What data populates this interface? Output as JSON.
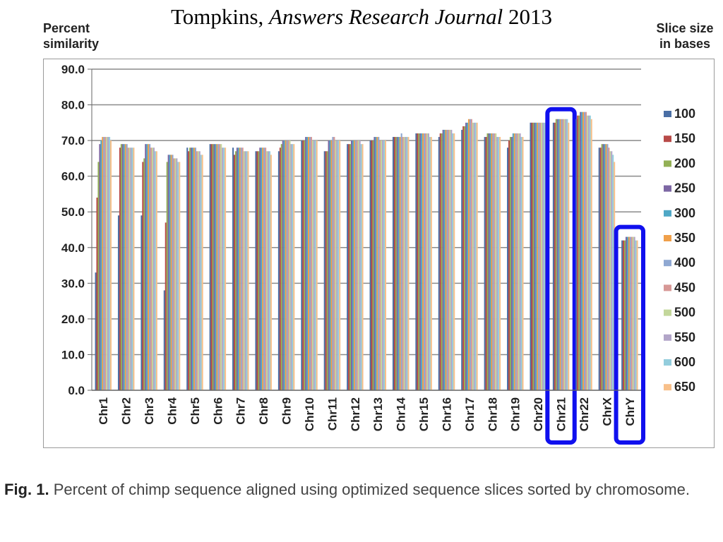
{
  "slide": {
    "author": "Tompkins,",
    "journal": "Answers Research Journal",
    "year": "2013"
  },
  "caption": {
    "label": "Fig. 1.",
    "text": "Percent of chimp sequence aligned using optimized sequence slices sorted by chromosome."
  },
  "chart_data": {
    "type": "bar",
    "title": "",
    "ylabel": "Percent similarity",
    "xlabel": "",
    "legend_title": "Slice size in bases",
    "legend_position": "right",
    "ylim": [
      0,
      90
    ],
    "yticks": [
      "0.0",
      "10.0",
      "20.0",
      "30.0",
      "40.0",
      "50.0",
      "60.0",
      "70.0",
      "80.0",
      "90.0"
    ],
    "grid": true,
    "categories": [
      "Chr1",
      "Chr2",
      "Chr3",
      "Chr4",
      "Chr5",
      "Chr6",
      "Chr7",
      "Chr8",
      "Chr9",
      "Chr10",
      "Chr11",
      "Chr12",
      "Chr13",
      "Chr14",
      "Chr15",
      "Chr16",
      "Chr17",
      "Chr18",
      "Chr19",
      "Chr20",
      "Chr21",
      "Chr22",
      "ChrX",
      "ChrY"
    ],
    "highlighted": [
      "Chr21",
      "ChrY"
    ],
    "highlight_color": "#1010ee",
    "series": [
      {
        "name": "100",
        "color": "#4a6fa5",
        "values": [
          33,
          49,
          49,
          28,
          68,
          69,
          68,
          67,
          67,
          70,
          67,
          69,
          70,
          71,
          72,
          71,
          73,
          71,
          68,
          75,
          75,
          76,
          68,
          42
        ]
      },
      {
        "name": "150",
        "color": "#b84a48",
        "values": [
          54,
          68,
          64,
          47,
          67,
          69,
          66,
          67,
          68,
          70,
          67,
          69,
          70,
          71,
          72,
          72,
          74,
          71,
          70,
          75,
          75,
          77,
          68,
          42
        ]
      },
      {
        "name": "200",
        "color": "#93b055",
        "values": [
          64,
          69,
          65,
          64,
          68,
          69,
          67,
          67,
          69,
          70,
          67,
          69,
          70,
          71,
          72,
          72,
          74,
          72,
          71,
          75,
          76,
          77,
          69,
          42
        ]
      },
      {
        "name": "250",
        "color": "#7d67a4",
        "values": [
          69,
          69,
          69,
          66,
          68,
          69,
          68,
          68,
          70,
          71,
          70,
          70,
          71,
          71,
          72,
          73,
          75,
          72,
          71,
          75,
          76,
          78,
          69,
          43
        ]
      },
      {
        "name": "300",
        "color": "#4fa8c6",
        "values": [
          70,
          69,
          69,
          66,
          68,
          69,
          68,
          68,
          70,
          71,
          70,
          70,
          71,
          71,
          72,
          73,
          75,
          72,
          72,
          75,
          76,
          78,
          69,
          43
        ]
      },
      {
        "name": "350",
        "color": "#f0a04a",
        "values": [
          71,
          69,
          69,
          66,
          68,
          69,
          68,
          68,
          70,
          71,
          70,
          70,
          71,
          71,
          72,
          73,
          76,
          72,
          72,
          75,
          76,
          78,
          69,
          43
        ]
      },
      {
        "name": "400",
        "color": "#8fa8d2",
        "values": [
          71,
          69,
          69,
          66,
          68,
          69,
          68,
          68,
          70,
          71,
          71,
          70,
          71,
          72,
          72,
          73,
          76,
          72,
          72,
          75,
          76,
          78,
          69,
          43
        ]
      },
      {
        "name": "450",
        "color": "#d79896",
        "values": [
          71,
          68,
          68,
          65,
          67,
          69,
          68,
          68,
          70,
          71,
          71,
          70,
          70,
          71,
          72,
          73,
          76,
          72,
          72,
          75,
          76,
          78,
          68,
          43
        ]
      },
      {
        "name": "500",
        "color": "#c3d79b",
        "values": [
          71,
          68,
          68,
          65,
          67,
          69,
          67,
          67,
          70,
          70,
          70,
          70,
          70,
          71,
          72,
          73,
          75,
          72,
          72,
          75,
          76,
          77,
          67,
          43
        ]
      },
      {
        "name": "550",
        "color": "#b2a5c8",
        "values": [
          71,
          68,
          68,
          65,
          67,
          68,
          67,
          67,
          69,
          70,
          70,
          70,
          70,
          71,
          72,
          73,
          75,
          71,
          72,
          75,
          76,
          77,
          67,
          43
        ]
      },
      {
        "name": "600",
        "color": "#93cddd",
        "values": [
          71,
          68,
          67,
          64,
          66,
          68,
          67,
          67,
          69,
          70,
          70,
          69,
          70,
          71,
          71,
          72,
          75,
          71,
          71,
          75,
          76,
          77,
          66,
          42
        ]
      },
      {
        "name": "650",
        "color": "#f8c08a",
        "values": [
          70,
          68,
          67,
          64,
          66,
          68,
          67,
          66,
          69,
          70,
          70,
          69,
          70,
          71,
          71,
          72,
          75,
          71,
          71,
          75,
          75,
          76,
          64,
          42
        ]
      }
    ]
  }
}
